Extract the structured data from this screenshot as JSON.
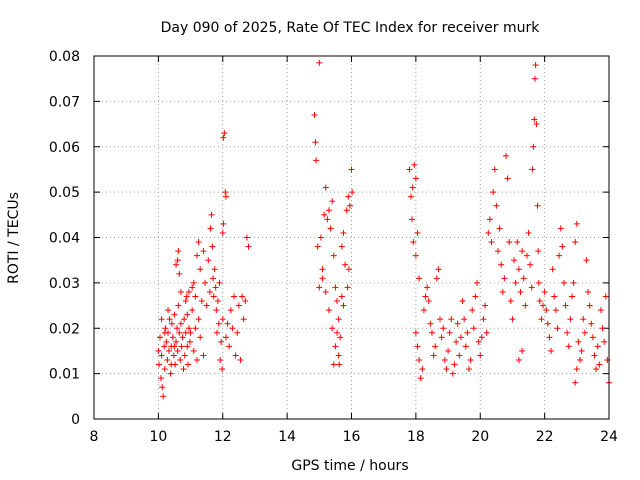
{
  "chart_data": {
    "type": "scatter",
    "title": "Day 090 of 2025, Rate Of TEC Index for receiver murk",
    "xlabel": "GPS time / hours",
    "ylabel": "ROTI / TECUs",
    "xlim": [
      8,
      24
    ],
    "ylim": [
      0,
      0.08
    ],
    "x_ticks": [
      "8",
      "10",
      "12",
      "14",
      "16",
      "18",
      "20",
      "22",
      "24"
    ],
    "y_ticks": [
      "0",
      "0.01",
      "0.02",
      "0.03",
      "0.04",
      "0.05",
      "0.06",
      "0.07",
      "0.08"
    ],
    "grid": true,
    "marker": "+",
    "color": "#ff0000",
    "series": [
      {
        "points": [
          [
            10.0,
            0.015
          ],
          [
            10.02,
            0.012
          ],
          [
            10.05,
            0.018
          ],
          [
            10.08,
            0.009
          ],
          [
            10.1,
            0.014
          ],
          [
            10.12,
            0.007
          ],
          [
            10.15,
            0.005
          ],
          [
            10.18,
            0.016
          ],
          [
            10.2,
            0.011
          ],
          [
            10.22,
            0.02
          ],
          [
            10.25,
            0.017
          ],
          [
            10.28,
            0.013
          ],
          [
            10.3,
            0.019
          ],
          [
            10.33,
            0.015
          ],
          [
            10.35,
            0.022
          ],
          [
            10.38,
            0.01
          ],
          [
            10.4,
            0.016
          ],
          [
            10.42,
            0.021
          ],
          [
            10.45,
            0.018
          ],
          [
            10.48,
            0.014
          ],
          [
            10.5,
            0.023
          ],
          [
            10.52,
            0.012
          ],
          [
            10.55,
            0.017
          ],
          [
            10.58,
            0.02
          ],
          [
            10.6,
            0.015
          ],
          [
            10.62,
            0.025
          ],
          [
            10.65,
            0.019
          ],
          [
            10.68,
            0.013
          ],
          [
            10.7,
            0.021
          ],
          [
            10.72,
            0.016
          ],
          [
            10.75,
            0.018
          ],
          [
            10.78,
            0.011
          ],
          [
            10.8,
            0.022
          ],
          [
            10.82,
            0.014
          ],
          [
            10.85,
            0.019
          ],
          [
            10.88,
            0.027
          ],
          [
            10.9,
            0.016
          ],
          [
            10.92,
            0.012
          ],
          [
            10.95,
            0.02
          ],
          [
            10.98,
            0.017
          ],
          [
            10.1,
            0.022
          ],
          [
            10.2,
            0.019
          ],
          [
            10.3,
            0.024
          ],
          [
            10.4,
            0.012
          ],
          [
            10.5,
            0.016
          ],
          [
            10.6,
            0.035
          ],
          [
            10.62,
            0.037
          ],
          [
            10.55,
            0.034
          ],
          [
            10.65,
            0.032
          ],
          [
            10.7,
            0.028
          ],
          [
            11.0,
            0.019
          ],
          [
            11.05,
            0.024
          ],
          [
            11.1,
            0.015
          ],
          [
            11.15,
            0.02
          ],
          [
            11.2,
            0.013
          ],
          [
            11.25,
            0.022
          ],
          [
            11.3,
            0.018
          ],
          [
            11.35,
            0.026
          ],
          [
            11.4,
            0.014
          ],
          [
            11.45,
            0.03
          ],
          [
            11.5,
            0.025
          ],
          [
            11.55,
            0.035
          ],
          [
            11.6,
            0.028
          ],
          [
            11.62,
            0.042
          ],
          [
            11.65,
            0.045
          ],
          [
            11.68,
            0.038
          ],
          [
            11.7,
            0.031
          ],
          [
            11.72,
            0.027
          ],
          [
            11.75,
            0.033
          ],
          [
            11.78,
            0.029
          ],
          [
            11.8,
            0.024
          ],
          [
            11.82,
            0.019
          ],
          [
            11.85,
            0.026
          ],
          [
            11.88,
            0.021
          ],
          [
            11.9,
            0.03
          ],
          [
            11.92,
            0.013
          ],
          [
            11.95,
            0.017
          ],
          [
            11.98,
            0.011
          ],
          [
            12.0,
            0.022
          ],
          [
            12.02,
            0.062
          ],
          [
            12.05,
            0.063
          ],
          [
            12.08,
            0.05
          ],
          [
            12.1,
            0.049
          ],
          [
            12.0,
            0.041
          ],
          [
            12.02,
            0.043
          ],
          [
            12.1,
            0.018
          ],
          [
            12.15,
            0.021
          ],
          [
            12.2,
            0.016
          ],
          [
            12.25,
            0.024
          ],
          [
            12.3,
            0.02
          ],
          [
            12.35,
            0.027
          ],
          [
            12.4,
            0.014
          ],
          [
            12.45,
            0.019
          ],
          [
            12.5,
            0.025
          ],
          [
            12.55,
            0.013
          ],
          [
            12.6,
            0.027
          ],
          [
            12.65,
            0.022
          ],
          [
            12.7,
            0.026
          ],
          [
            12.75,
            0.04
          ],
          [
            12.8,
            0.038
          ],
          [
            11.2,
            0.036
          ],
          [
            11.25,
            0.039
          ],
          [
            11.3,
            0.033
          ],
          [
            11.4,
            0.037
          ],
          [
            11.1,
            0.03
          ],
          [
            11.15,
            0.027
          ],
          [
            11.05,
            0.029
          ],
          [
            10.9,
            0.023
          ],
          [
            10.85,
            0.026
          ],
          [
            10.95,
            0.028
          ],
          [
            14.85,
            0.067
          ],
          [
            14.9,
            0.057
          ],
          [
            14.88,
            0.061
          ],
          [
            15.0,
            0.0785
          ],
          [
            14.95,
            0.038
          ],
          [
            15.05,
            0.04
          ],
          [
            15.1,
            0.033
          ],
          [
            15.15,
            0.045
          ],
          [
            15.2,
            0.051
          ],
          [
            15.25,
            0.044
          ],
          [
            15.3,
            0.046
          ],
          [
            15.35,
            0.042
          ],
          [
            15.4,
            0.048
          ],
          [
            15.45,
            0.036
          ],
          [
            15.5,
            0.029
          ],
          [
            15.55,
            0.026
          ],
          [
            15.6,
            0.022
          ],
          [
            15.65,
            0.018
          ],
          [
            15.6,
            0.014
          ],
          [
            15.62,
            0.012
          ],
          [
            15.0,
            0.029
          ],
          [
            15.1,
            0.031
          ],
          [
            15.2,
            0.028
          ],
          [
            15.3,
            0.024
          ],
          [
            15.4,
            0.02
          ],
          [
            15.7,
            0.038
          ],
          [
            15.75,
            0.041
          ],
          [
            15.8,
            0.034
          ],
          [
            15.85,
            0.046
          ],
          [
            15.9,
            0.049
          ],
          [
            15.95,
            0.047
          ],
          [
            16.0,
            0.055
          ],
          [
            16.02,
            0.05
          ],
          [
            15.88,
            0.029
          ],
          [
            15.92,
            0.033
          ],
          [
            15.7,
            0.027
          ],
          [
            15.75,
            0.025
          ],
          [
            15.5,
            0.016
          ],
          [
            15.55,
            0.019
          ],
          [
            15.45,
            0.012
          ],
          [
            17.8,
            0.055
          ],
          [
            17.85,
            0.049
          ],
          [
            17.9,
            0.051
          ],
          [
            17.95,
            0.056
          ],
          [
            18.0,
            0.053
          ],
          [
            17.88,
            0.044
          ],
          [
            17.92,
            0.039
          ],
          [
            18.0,
            0.036
          ],
          [
            18.05,
            0.041
          ],
          [
            18.1,
            0.031
          ],
          [
            18.0,
            0.019
          ],
          [
            18.05,
            0.016
          ],
          [
            18.1,
            0.013
          ],
          [
            18.15,
            0.009
          ],
          [
            18.2,
            0.011
          ],
          [
            18.25,
            0.024
          ],
          [
            18.3,
            0.027
          ],
          [
            18.35,
            0.029
          ],
          [
            18.4,
            0.026
          ],
          [
            18.45,
            0.021
          ],
          [
            18.5,
            0.019
          ],
          [
            18.55,
            0.014
          ],
          [
            18.6,
            0.016
          ],
          [
            18.65,
            0.031
          ],
          [
            18.7,
            0.033
          ],
          [
            18.75,
            0.022
          ],
          [
            18.8,
            0.018
          ],
          [
            18.85,
            0.02
          ],
          [
            18.9,
            0.013
          ],
          [
            18.95,
            0.011
          ],
          [
            19.0,
            0.015
          ],
          [
            19.05,
            0.019
          ],
          [
            19.1,
            0.022
          ],
          [
            19.15,
            0.01
          ],
          [
            19.2,
            0.012
          ],
          [
            19.25,
            0.017
          ],
          [
            19.3,
            0.021
          ],
          [
            19.35,
            0.014
          ],
          [
            19.4,
            0.018
          ],
          [
            19.45,
            0.026
          ],
          [
            19.5,
            0.022
          ],
          [
            19.55,
            0.016
          ],
          [
            19.6,
            0.019
          ],
          [
            19.65,
            0.011
          ],
          [
            19.7,
            0.013
          ],
          [
            19.75,
            0.024
          ],
          [
            19.8,
            0.02
          ],
          [
            19.85,
            0.027
          ],
          [
            19.9,
            0.03
          ],
          [
            19.95,
            0.017
          ],
          [
            20.0,
            0.014
          ],
          [
            20.05,
            0.018
          ],
          [
            20.1,
            0.022
          ],
          [
            20.15,
            0.025
          ],
          [
            20.2,
            0.019
          ],
          [
            20.25,
            0.041
          ],
          [
            20.3,
            0.044
          ],
          [
            20.35,
            0.039
          ],
          [
            20.4,
            0.05
          ],
          [
            20.45,
            0.055
          ],
          [
            20.5,
            0.047
          ],
          [
            20.55,
            0.037
          ],
          [
            20.6,
            0.042
          ],
          [
            20.65,
            0.034
          ],
          [
            20.7,
            0.028
          ],
          [
            20.75,
            0.031
          ],
          [
            20.8,
            0.058
          ],
          [
            20.85,
            0.053
          ],
          [
            20.9,
            0.039
          ],
          [
            20.95,
            0.026
          ],
          [
            21.0,
            0.022
          ],
          [
            21.05,
            0.035
          ],
          [
            21.1,
            0.03
          ],
          [
            21.15,
            0.039
          ],
          [
            21.2,
            0.033
          ],
          [
            21.25,
            0.028
          ],
          [
            21.3,
            0.037
          ],
          [
            21.35,
            0.031
          ],
          [
            21.4,
            0.025
          ],
          [
            21.45,
            0.036
          ],
          [
            21.5,
            0.041
          ],
          [
            21.55,
            0.034
          ],
          [
            21.6,
            0.029
          ],
          [
            21.62,
            0.055
          ],
          [
            21.65,
            0.06
          ],
          [
            21.68,
            0.066
          ],
          [
            21.7,
            0.075
          ],
          [
            21.72,
            0.078
          ],
          [
            21.75,
            0.065
          ],
          [
            21.78,
            0.047
          ],
          [
            21.8,
            0.037
          ],
          [
            21.82,
            0.03
          ],
          [
            21.85,
            0.026
          ],
          [
            21.9,
            0.022
          ],
          [
            21.95,
            0.025
          ],
          [
            22.0,
            0.028
          ],
          [
            22.05,
            0.024
          ],
          [
            22.1,
            0.021
          ],
          [
            22.15,
            0.018
          ],
          [
            22.2,
            0.015
          ],
          [
            22.25,
            0.033
          ],
          [
            22.3,
            0.027
          ],
          [
            22.35,
            0.024
          ],
          [
            22.4,
            0.02
          ],
          [
            22.45,
            0.036
          ],
          [
            22.5,
            0.042
          ],
          [
            22.55,
            0.038
          ],
          [
            22.6,
            0.03
          ],
          [
            22.65,
            0.025
          ],
          [
            22.7,
            0.019
          ],
          [
            22.75,
            0.016
          ],
          [
            22.8,
            0.022
          ],
          [
            22.85,
            0.027
          ],
          [
            22.9,
            0.03
          ],
          [
            22.95,
            0.039
          ],
          [
            23.0,
            0.043
          ],
          [
            23.05,
            0.017
          ],
          [
            23.1,
            0.013
          ],
          [
            23.15,
            0.015
          ],
          [
            23.2,
            0.022
          ],
          [
            23.25,
            0.019
          ],
          [
            23.3,
            0.035
          ],
          [
            23.35,
            0.028
          ],
          [
            23.4,
            0.025
          ],
          [
            23.45,
            0.021
          ],
          [
            23.5,
            0.018
          ],
          [
            23.55,
            0.014
          ],
          [
            23.6,
            0.011
          ],
          [
            23.65,
            0.016
          ],
          [
            23.7,
            0.012
          ],
          [
            23.75,
            0.024
          ],
          [
            23.8,
            0.02
          ],
          [
            23.85,
            0.017
          ],
          [
            23.9,
            0.027
          ],
          [
            23.95,
            0.013
          ],
          [
            24.0,
            0.008
          ],
          [
            22.95,
            0.008
          ],
          [
            23.0,
            0.011
          ],
          [
            21.3,
            0.015
          ],
          [
            21.2,
            0.013
          ]
        ]
      }
    ]
  }
}
